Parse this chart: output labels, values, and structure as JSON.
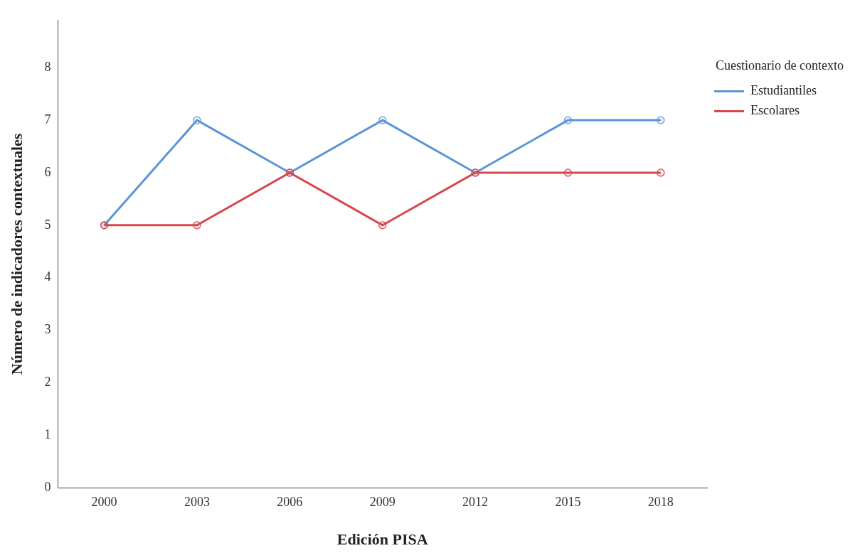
{
  "chart_data": {
    "type": "line",
    "xlabel": "Edición PISA",
    "ylabel": "Número de indicadores contextuales",
    "legend_title": "Cuestionario de contexto",
    "categories": [
      "2000",
      "2003",
      "2006",
      "2009",
      "2012",
      "2015",
      "2018"
    ],
    "series": [
      {
        "name": "Estudiantiles",
        "color": "#5b95d6",
        "values": [
          5,
          7,
          6,
          7,
          6,
          7,
          7
        ]
      },
      {
        "name": "Escolares",
        "color": "#d6464b",
        "values": [
          5,
          5,
          6,
          5,
          6,
          6,
          6
        ]
      }
    ],
    "ylim": [
      0,
      8.9
    ],
    "yticks": [
      0,
      1,
      2,
      3,
      4,
      5,
      6,
      7,
      8
    ],
    "grid": false,
    "legend": "top right",
    "marker": "circle",
    "line_style": "solid"
  }
}
